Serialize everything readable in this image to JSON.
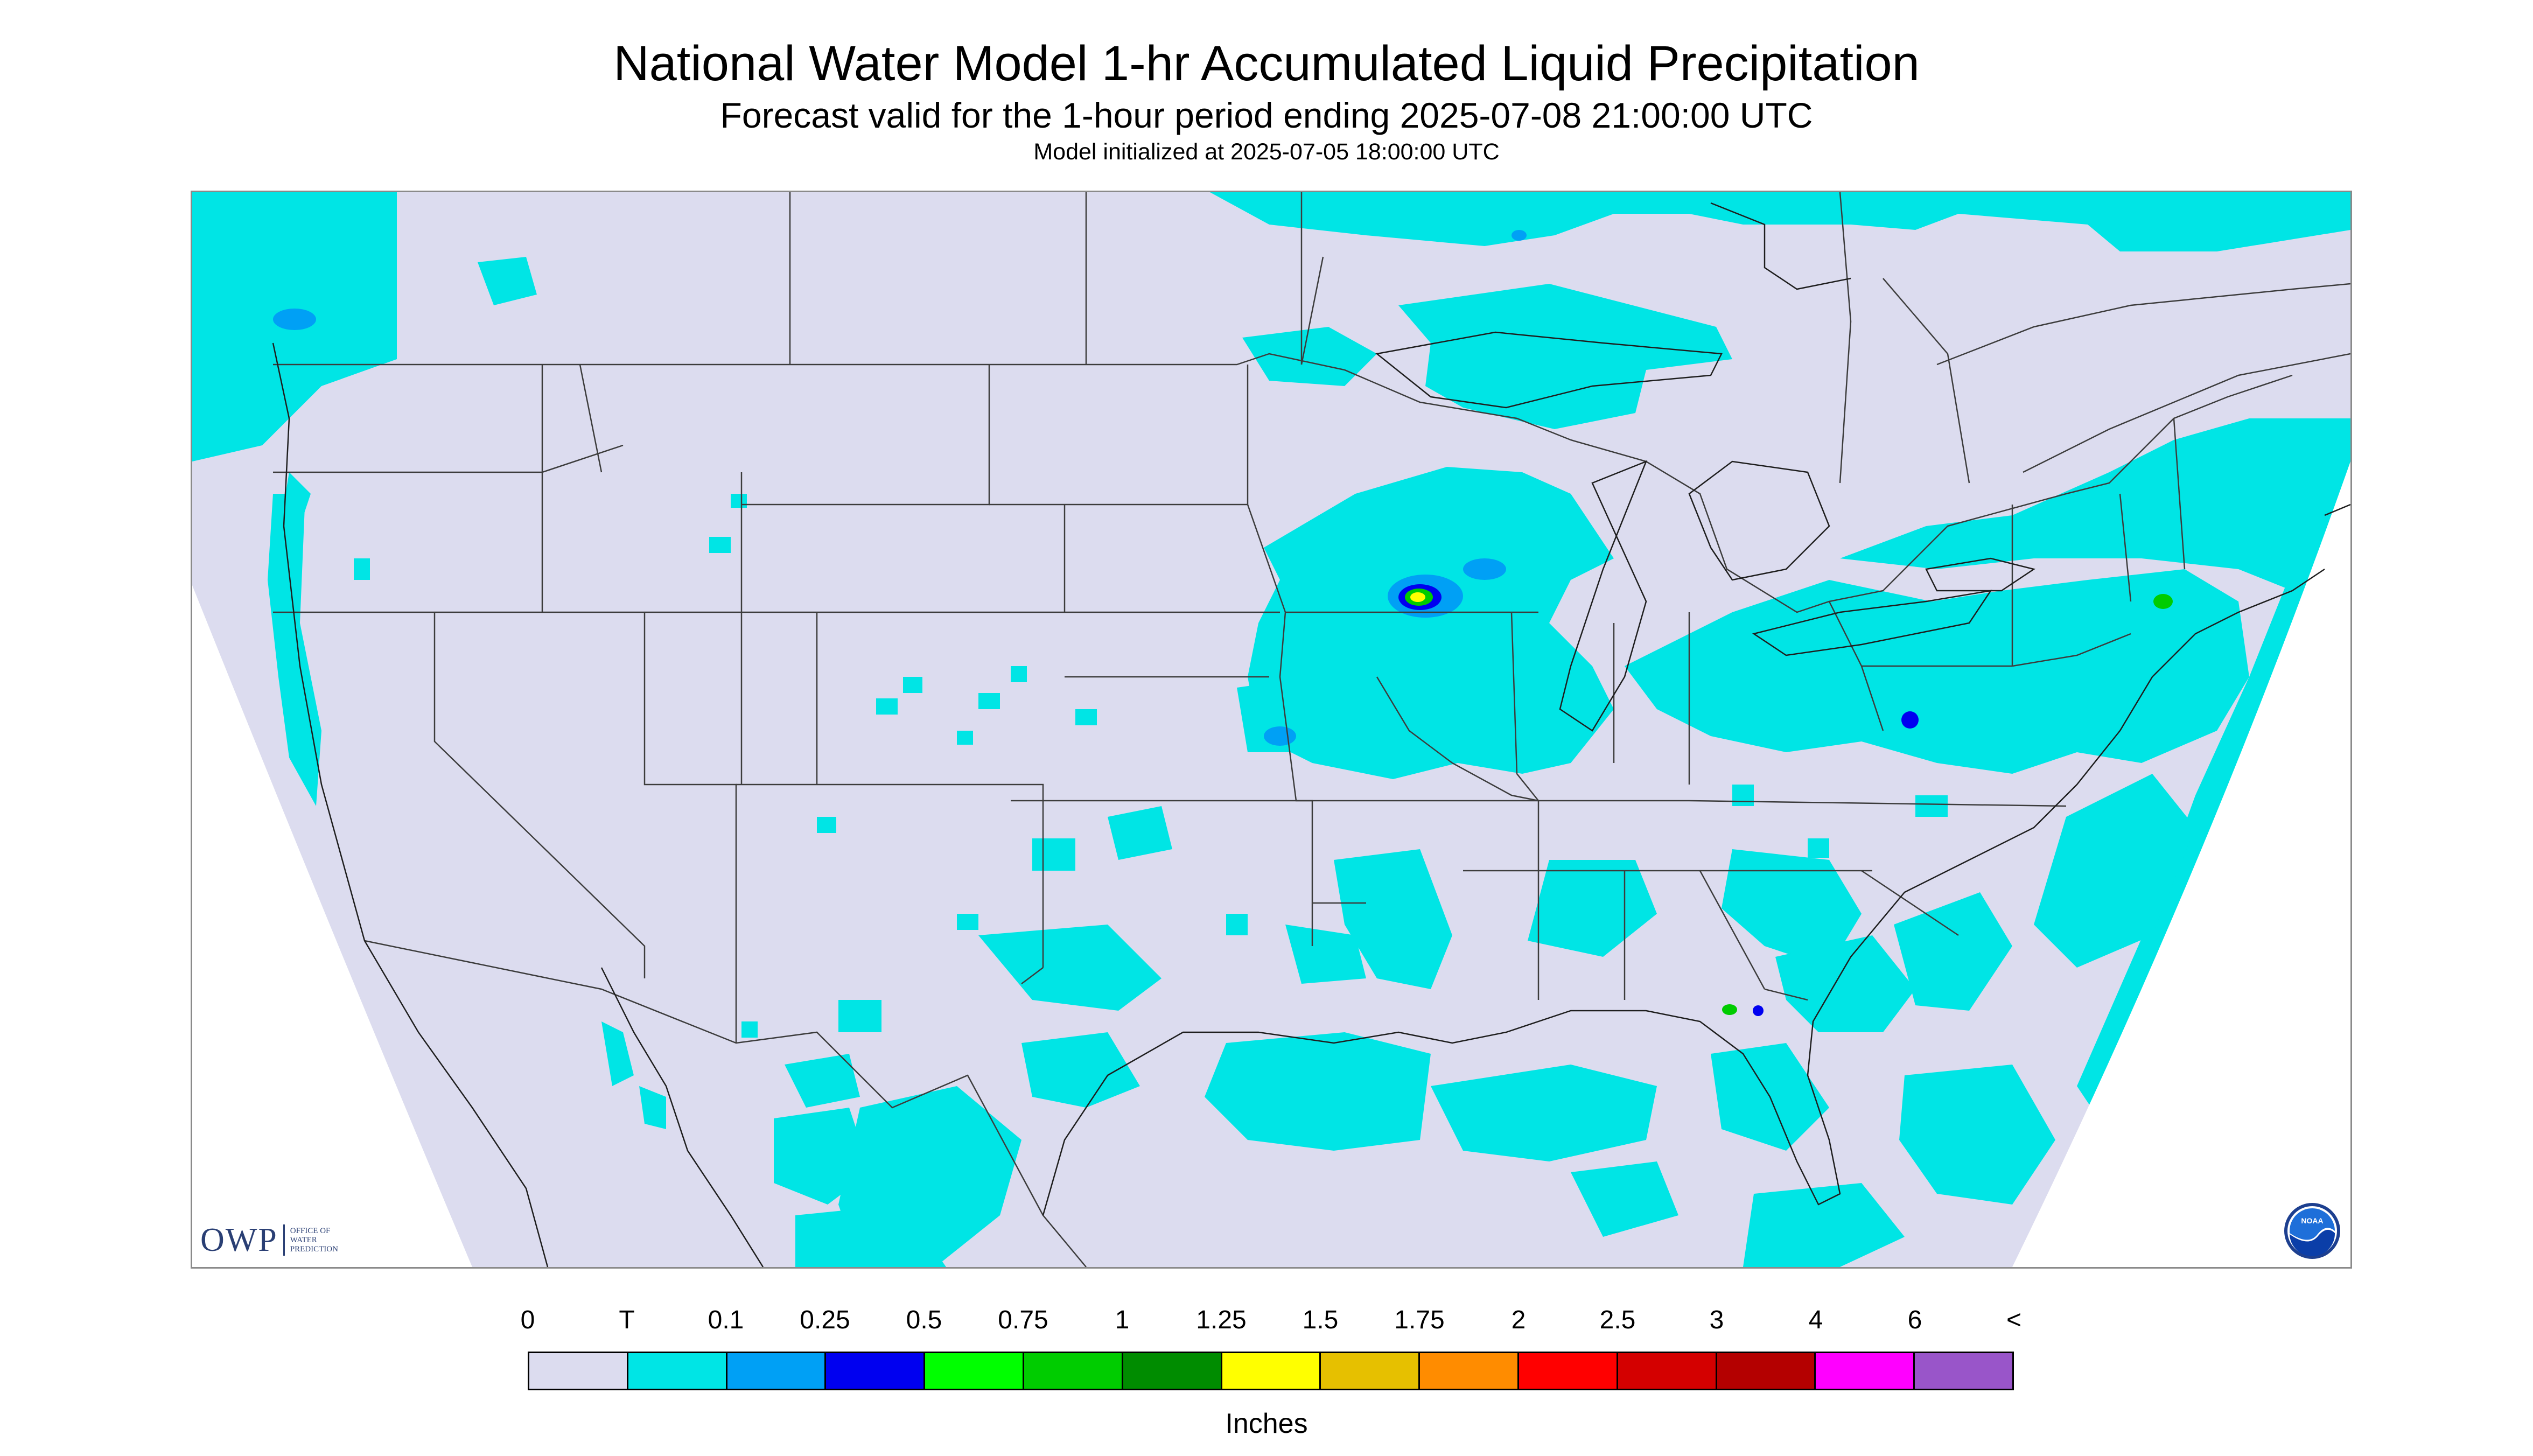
{
  "title": "National Water Model 1-hr Accumulated Liquid Precipitation",
  "subtitle": "Forecast valid for the 1-hour period ending 2025-07-08 21:00:00 UTC",
  "init_line": "Model initialized at 2025-07-05 18:00:00 UTC",
  "logos": {
    "owp_text": "OWP",
    "owp_sub": [
      "OFFICE OF",
      "WATER",
      "PREDICTION"
    ],
    "noaa_text": "NOAA"
  },
  "colors": {
    "map_background": "#dcdcef",
    "outside_projection": "#ffffff",
    "boundary_lines": "#3c3c3c"
  },
  "legend": {
    "units": "Inches",
    "tick_labels": [
      "0",
      "T",
      "0.1",
      "0.25",
      "0.5",
      "0.75",
      "1",
      "1.25",
      "1.5",
      "1.75",
      "2",
      "2.5",
      "3",
      "4",
      "6",
      "<"
    ],
    "bins": [
      {
        "color": "#dcdcef"
      },
      {
        "color": "#00e5e5"
      },
      {
        "color": "#00a0f5"
      },
      {
        "color": "#0000f0"
      },
      {
        "color": "#00ff00"
      },
      {
        "color": "#00cc00"
      },
      {
        "color": "#008c00"
      },
      {
        "color": "#ffff00"
      },
      {
        "color": "#e6c000"
      },
      {
        "color": "#ff8c00"
      },
      {
        "color": "#ff0000"
      },
      {
        "color": "#d40000"
      },
      {
        "color": "#b40000"
      },
      {
        "color": "#ff00ff"
      },
      {
        "color": "#9955c9"
      }
    ]
  }
}
